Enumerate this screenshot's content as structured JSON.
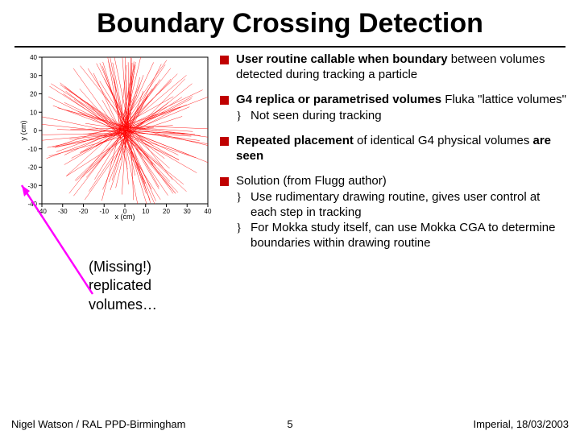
{
  "title": "Boundary Crossing Detection",
  "bullets": [
    {
      "lead": "User routine callable when boundary",
      "rest": " between volumes detected during tracking a particle"
    },
    {
      "lead": "G4 replica or parametrised volumes",
      "rest": " Fluka \"lattice volumes\"",
      "subs": [
        "Not seen during tracking"
      ]
    },
    {
      "lead": "Repeated placement",
      "rest": " of identical G4 physical volumes are seen"
    }
  ],
  "solution": {
    "lead": "Solution (from Flugg author)",
    "subs": [
      "Use rudimentary drawing routine, gives user control at each step in tracking",
      "For Mokka study itself, can use Mokka CGA to determine boundaries within drawing routine"
    ]
  },
  "missing": {
    "l1": "(Missing!)",
    "l2": "replicated",
    "l3": "volumes…"
  },
  "chart": {
    "xlabel": "x (cm)",
    "ylabel": "y (cm)",
    "xlim": [
      -40,
      40
    ],
    "ylim": [
      -40,
      40
    ],
    "ticks": [
      -40,
      -30,
      -20,
      -10,
      0,
      10,
      20,
      30,
      40
    ],
    "line_color": "#ff0000",
    "axis_color": "#000000",
    "bg": "#ffffff",
    "n_lines": 180
  },
  "arrow_color": "#ff00ff",
  "footer": {
    "left": "Nigel Watson / RAL PPD-Birmingham",
    "page": "5",
    "right": "Imperial, 18/03/2003"
  }
}
